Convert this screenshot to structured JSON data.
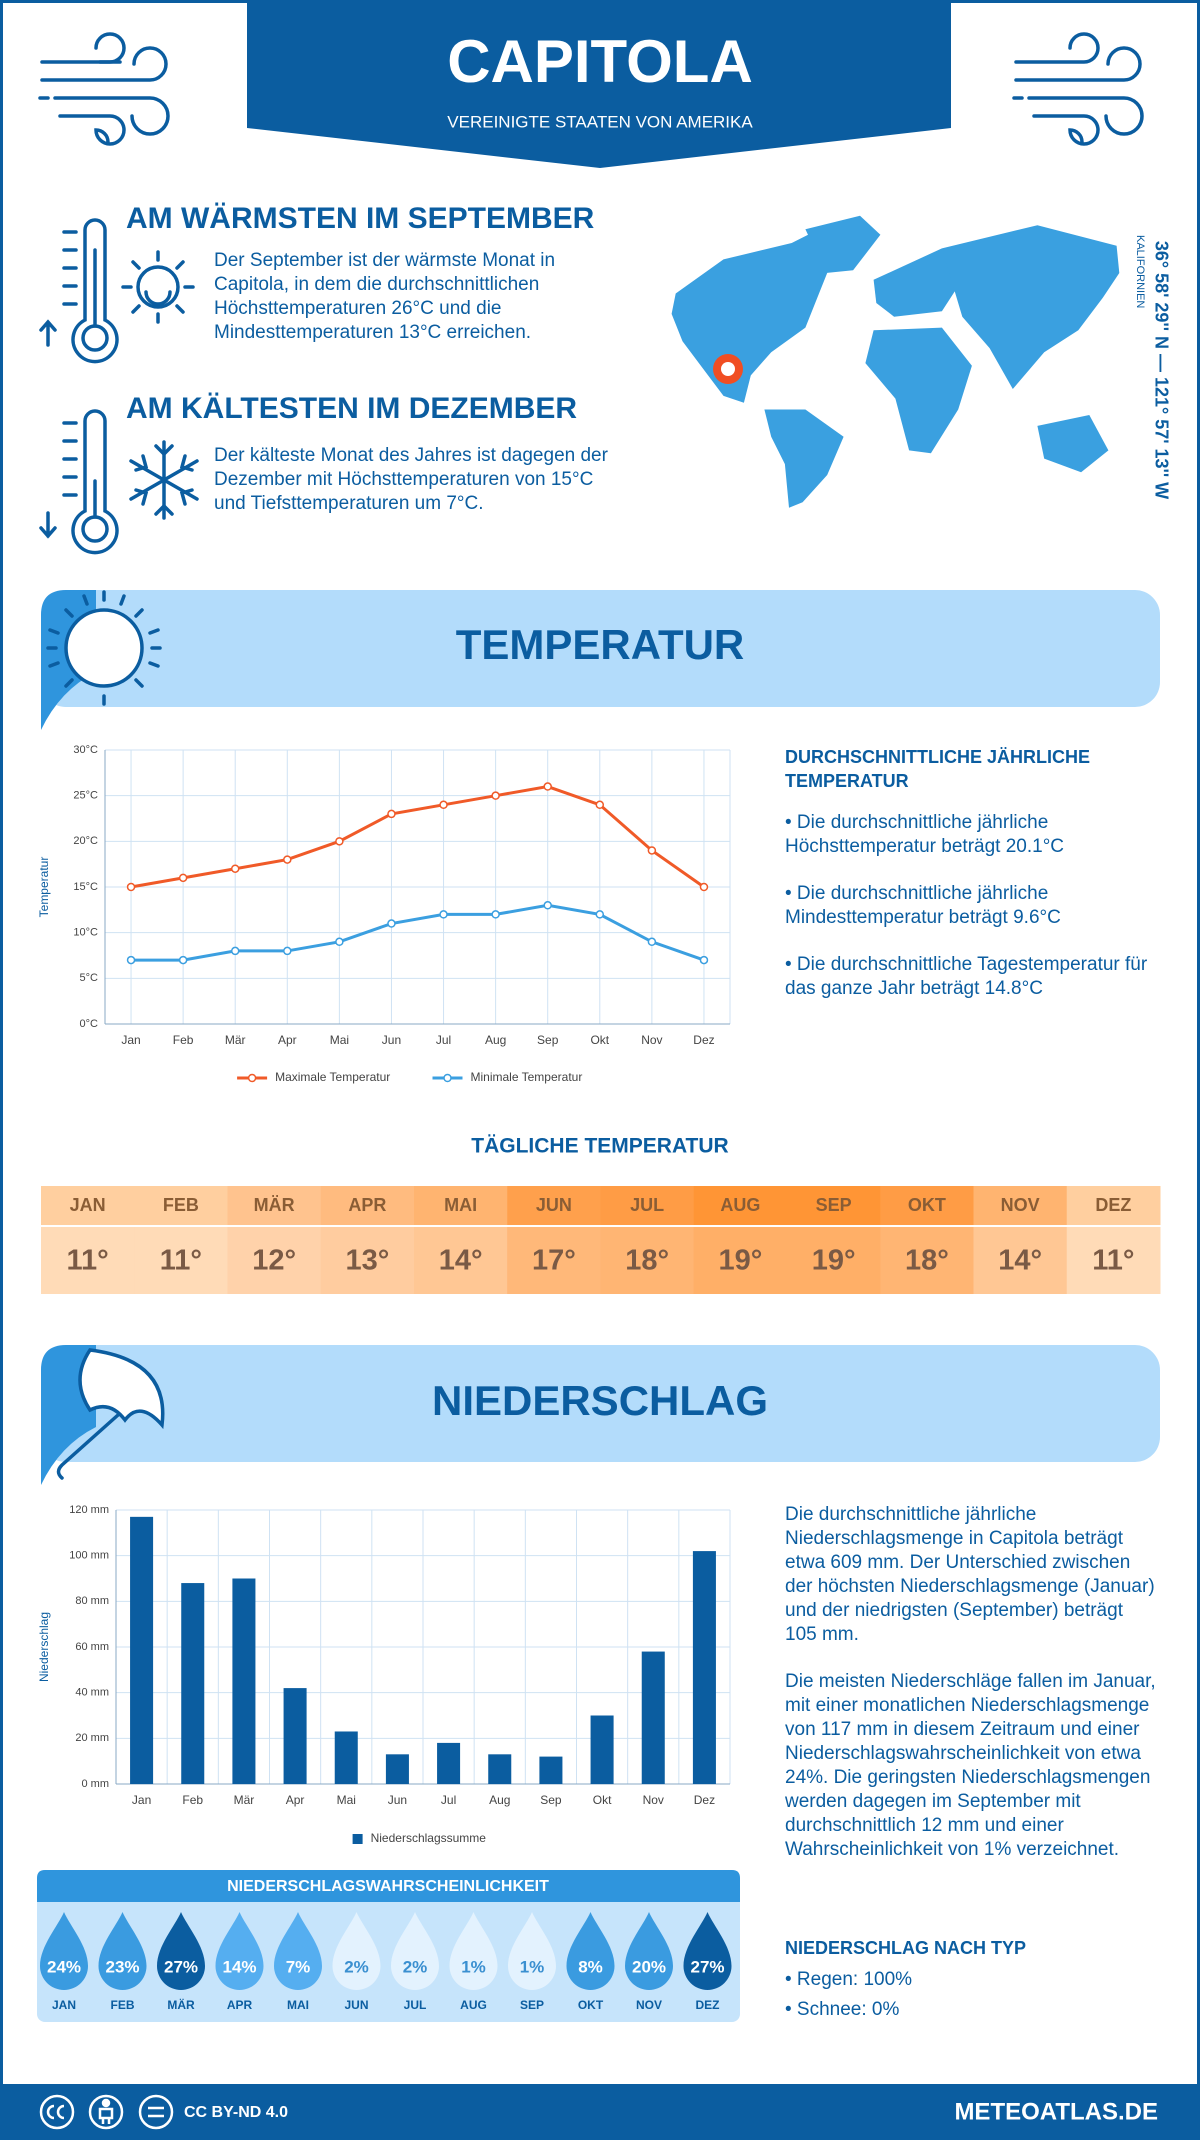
{
  "header": {
    "title": "CAPITOLA",
    "subtitle": "VEREINIGTE STAATEN VON AMERIKA"
  },
  "location": {
    "coordinates": "36° 58' 29'' N — 121° 57' 13'' W",
    "region": "KALIFORNIEN"
  },
  "warmest": {
    "title": "AM WÄRMSTEN IM SEPTEMBER",
    "text": "Der September ist der wärmste Monat in Capitola, in dem die durchschnittlichen Höchsttemperaturen 26°C und die Mindesttemperaturen 13°C erreichen."
  },
  "coldest": {
    "title": "AM KÄLTESTEN IM DEZEMBER",
    "text": "Der kälteste Monat des Jahres ist dagegen der Dezember mit Höchsttemperaturen von 15°C und Tiefsttemperaturen um 7°C."
  },
  "temperature_section": {
    "title": "TEMPERATUR",
    "summary_title": "DURCHSCHNITTLICHE JÄHRLICHE TEMPERATUR",
    "bullets": [
      "• Die durchschnittliche jährliche Höchsttemperatur beträgt 20.1°C",
      "• Die durchschnittliche jährliche Mindesttemperatur beträgt 9.6°C",
      "• Die durchschnittliche Tagestemperatur für das ganze Jahr beträgt 14.8°C"
    ]
  },
  "daily_temperature": {
    "title": "TÄGLICHE TEMPERATUR",
    "months": [
      "JAN",
      "FEB",
      "MÄR",
      "APR",
      "MAI",
      "JUN",
      "JUL",
      "AUG",
      "SEP",
      "OKT",
      "NOV",
      "DEZ"
    ],
    "values": [
      "11°",
      "11°",
      "12°",
      "13°",
      "14°",
      "17°",
      "18°",
      "19°",
      "19°",
      "18°",
      "14°",
      "11°"
    ],
    "colors": [
      "#ffcf9f",
      "#ffcf9f",
      "#ffc38e",
      "#ffbb7f",
      "#ffb470",
      "#ffa04c",
      "#ff9c45",
      "#ff9535",
      "#ff9535",
      "#ff9c45",
      "#ffb470",
      "#ffcf9f"
    ]
  },
  "precipitation_section": {
    "title": "NIEDERSCHLAG",
    "paragraphs": [
      "Die durchschnittliche jährliche Niederschlagsmenge in Capitola beträgt etwa 609 mm. Der Unterschied zwischen der höchsten Niederschlagsmenge (Januar) und der niedrigsten (September) beträgt 105 mm.",
      "Die meisten Niederschläge fallen im Januar, mit einer monatlichen Niederschlagsmenge von 117 mm in diesem Zeitraum und einer Niederschlagswahrscheinlichkeit von etwa 24%. Die geringsten Niederschlagsmengen werden dagegen im September mit durchschnittlich 12 mm und einer Wahrscheinlichkeit von 1% verzeichnet."
    ],
    "type_title": "NIEDERSCHLAG NACH TYP",
    "types": [
      "• Regen: 100%",
      "• Schnee: 0%"
    ]
  },
  "precipitation_probability": {
    "title": "NIEDERSCHLAGSWAHRSCHEINLICHKEIT",
    "months": [
      "JAN",
      "FEB",
      "MÄR",
      "APR",
      "MAI",
      "JUN",
      "JUL",
      "AUG",
      "SEP",
      "OKT",
      "NOV",
      "DEZ"
    ],
    "values": [
      "24%",
      "23%",
      "27%",
      "14%",
      "7%",
      "2%",
      "2%",
      "1%",
      "1%",
      "8%",
      "20%",
      "27%"
    ],
    "colors": [
      "#3a9be0",
      "#3a9be0",
      "#0b5da0",
      "#55aef0",
      "#55aef0",
      "#e3f2fe",
      "#e3f2fe",
      "#e3f2fe",
      "#e3f2fe",
      "#3a9be0",
      "#3a9be0",
      "#0b5da0"
    ]
  },
  "footer": {
    "license": "CC BY-ND 4.0",
    "site": "METEOATLAS.DE"
  },
  "chart_data": [
    {
      "type": "line",
      "y_label": "Temperatur",
      "categories": [
        "Jan",
        "Feb",
        "Mär",
        "Apr",
        "Mai",
        "Jun",
        "Jul",
        "Aug",
        "Sep",
        "Okt",
        "Nov",
        "Dez"
      ],
      "series": [
        {
          "name": "Maximale Temperatur",
          "color": "#f05a28",
          "values": [
            15,
            16,
            17,
            18,
            20,
            23,
            24,
            25,
            26,
            24,
            19,
            15
          ]
        },
        {
          "name": "Minimale Temperatur",
          "color": "#3b9fe0",
          "values": [
            7,
            7,
            8,
            8,
            9,
            11,
            12,
            12,
            13,
            12,
            9,
            7
          ]
        }
      ],
      "ylim": [
        0,
        30
      ],
      "yticks": [
        {
          "value": 0,
          "label": "0°C"
        },
        {
          "value": 5,
          "label": "5°C"
        },
        {
          "value": 10,
          "label": "10°C"
        },
        {
          "value": 15,
          "label": "15°C"
        },
        {
          "value": 20,
          "label": "20°C"
        },
        {
          "value": 25,
          "label": "25°C"
        },
        {
          "value": 30,
          "label": "30°C"
        }
      ],
      "grid": true
    },
    {
      "type": "bar",
      "y_label": "Niederschlag",
      "categories": [
        "Jan",
        "Feb",
        "Mär",
        "Apr",
        "Mai",
        "Jun",
        "Jul",
        "Aug",
        "Sep",
        "Okt",
        "Nov",
        "Dez"
      ],
      "series": [
        {
          "name": "Niederschlagssumme",
          "color": "#0b5da0",
          "values": [
            117,
            88,
            90,
            42,
            23,
            13,
            18,
            13,
            12,
            30,
            58,
            102
          ]
        }
      ],
      "ylim": [
        0,
        120
      ],
      "yticks": [
        {
          "value": 0,
          "label": "0 mm"
        },
        {
          "value": 20,
          "label": "20 mm"
        },
        {
          "value": 40,
          "label": "40 mm"
        },
        {
          "value": 60,
          "label": "60 mm"
        },
        {
          "value": 80,
          "label": "80 mm"
        },
        {
          "value": 100,
          "label": "100 mm"
        },
        {
          "value": 120,
          "label": "120 mm"
        }
      ],
      "grid": true
    }
  ]
}
